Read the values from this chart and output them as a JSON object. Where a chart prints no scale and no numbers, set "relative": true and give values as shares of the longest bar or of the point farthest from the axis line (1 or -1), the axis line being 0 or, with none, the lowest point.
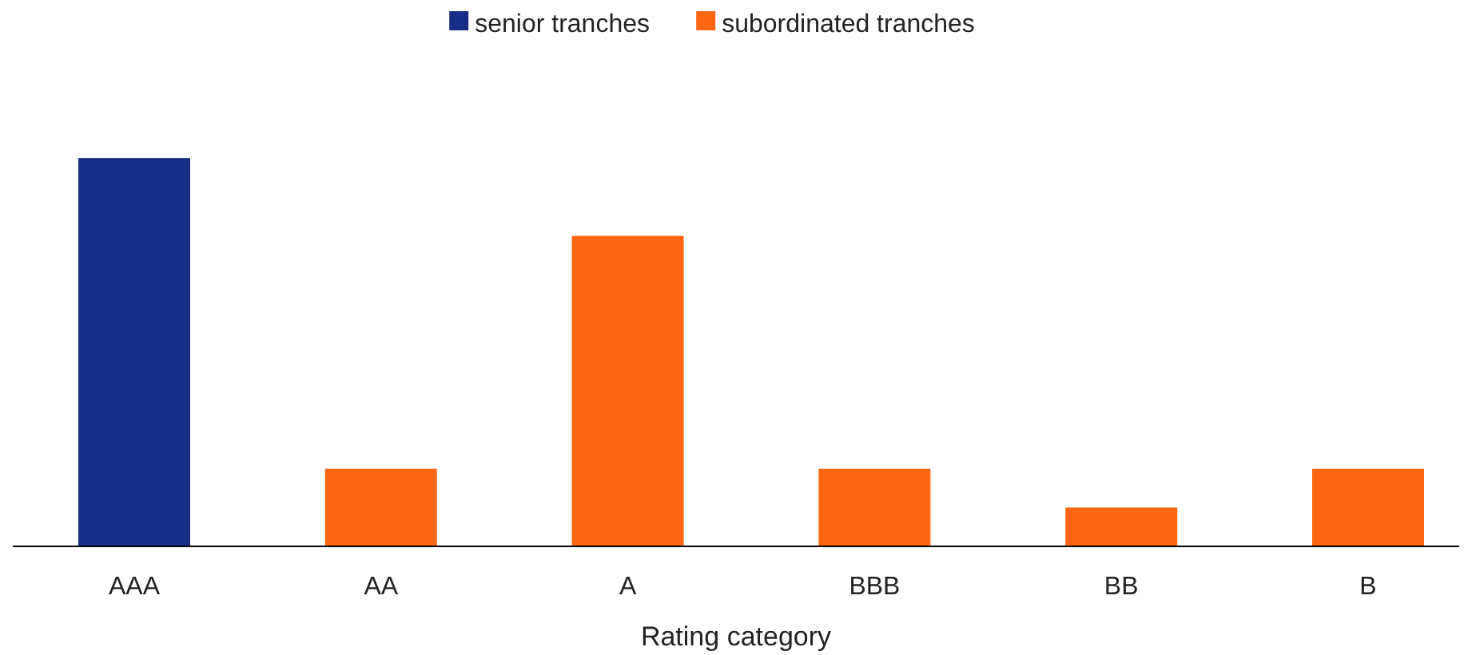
{
  "chart_data": {
    "type": "bar",
    "xlabel": "Rating category",
    "categories": [
      "AAA",
      "AA",
      "A",
      "BBB",
      "BB",
      "B"
    ],
    "relative": true,
    "stacked": true,
    "legend": "top",
    "series": [
      {
        "name": "senior tranches",
        "color": "#172e87",
        "values": [
          1,
          null,
          null,
          null,
          null,
          null
        ]
      },
      {
        "name": "subordinated tranches",
        "color": "#ff6611",
        "values": [
          null,
          0.2,
          0.8,
          0.2,
          0.1,
          0.2
        ]
      }
    ]
  }
}
